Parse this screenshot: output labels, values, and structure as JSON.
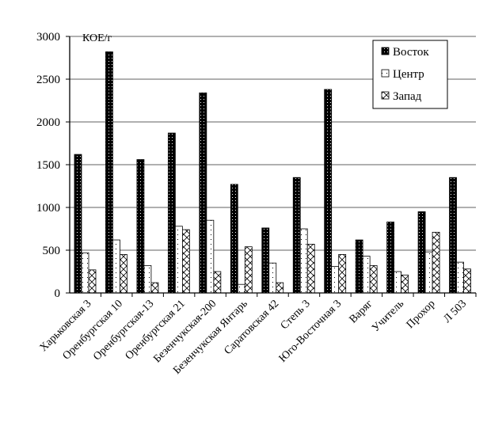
{
  "chart_data": {
    "type": "bar",
    "ylabel": "КОЕ/г",
    "ylim": [
      0,
      3000
    ],
    "yticks": [
      0,
      500,
      1000,
      1500,
      2000,
      2500,
      3000
    ],
    "grid": true,
    "legend_position": "top-right",
    "categories": [
      "Харьковская 3",
      "Оренбургская 10",
      "Оренбургская-13",
      "Оренбургская 21",
      "Безенчукская-200",
      "Безенчукская Янтарь",
      "Саратовская 42",
      "Степь 3",
      "Юго-Восточная 3",
      "Варяг",
      "Учитель",
      "Прохор",
      "Л 503"
    ],
    "series": [
      {
        "name": "Восток",
        "pattern": "black-dotted",
        "values": [
          1620,
          2820,
          1560,
          1870,
          2340,
          1270,
          760,
          1350,
          2380,
          620,
          830,
          950,
          1350
        ]
      },
      {
        "name": "Центр",
        "pattern": "white-dotted",
        "values": [
          470,
          620,
          320,
          780,
          850,
          100,
          350,
          750,
          310,
          430,
          250,
          480,
          360
        ]
      },
      {
        "name": "Запад",
        "pattern": "crosshatch",
        "values": [
          270,
          450,
          120,
          740,
          250,
          540,
          120,
          570,
          450,
          320,
          210,
          710,
          280
        ]
      }
    ]
  }
}
